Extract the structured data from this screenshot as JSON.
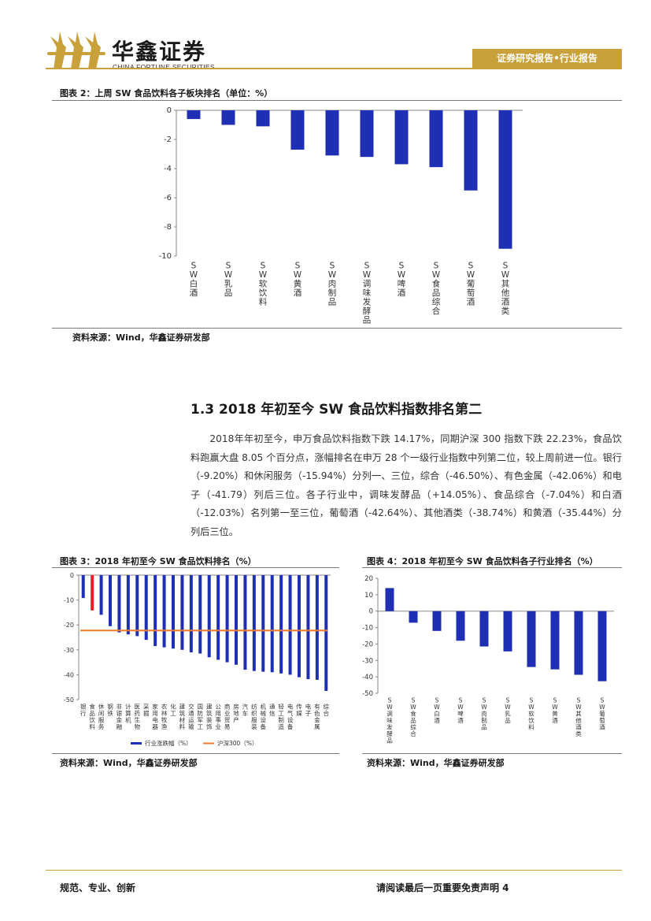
{
  "header": {
    "logo_cn": "华鑫证券",
    "logo_en": "CHINA FORTUNE SECURITIES",
    "report_tag": "证券研究报告•行业报告",
    "brand_color": "#c9a13a"
  },
  "figure2": {
    "title": "图表 2：上周 SW 食品饮料各子板块排名（单位：%）",
    "source": "资料来源：Wind，华鑫证券研发部"
  },
  "section": {
    "heading": "1.3 2018 年初至今 SW 食品饮料指数排名第二",
    "paragraph": "2018年年初至今，申万食品饮料指数下跌 14.17%，同期沪深 300 指数下跌 22.23%，食品饮料跑赢大盘 8.05 个百分点，涨幅排名在申万 28 个一级行业指数中列第二位，较上周前进一位。银行（-9.20%）和休闲服务（-15.94%）分列一、三位，综合（-46.50%）、有色金属（-42.06%）和电子（-41.79）列后三位。各子行业中，调味发酵品（+14.05%）、食品综合（-7.04%）和白酒（-12.03%）名列第一至三位，葡萄酒（-42.64%）、其他酒类（-38.74%）和黄酒（-35.44%）分列后三位。"
  },
  "figure3": {
    "title": "图表 3：2018 年初至今 SW 食品饮料排名（%）",
    "source": "资料来源：Wind，华鑫证券研发部"
  },
  "figure4": {
    "title": "图表 4：2018 年初至今 SW 食品饮料各子行业排名（%）",
    "source": "资料来源：Wind，华鑫证券研发部"
  },
  "footer": {
    "left": "规范、专业、创新",
    "right": "请阅读最后一页重要免责声明 4"
  },
  "chart_data": [
    {
      "id": "figure2",
      "type": "bar",
      "categories": [
        "SW白酒",
        "SW乳品",
        "SW软饮料",
        "SW黄酒",
        "SW肉制品",
        "SW调味发酵品",
        "SW啤酒",
        "SW食品综合",
        "SW葡萄酒",
        "SW其他酒类"
      ],
      "values": [
        -0.6,
        -1.0,
        -1.1,
        -2.7,
        -3.1,
        -3.2,
        -3.7,
        -3.9,
        -5.5,
        -9.5
      ],
      "ylim": [
        -10,
        0
      ],
      "yticks": [
        0,
        -2,
        -4,
        -6,
        -8,
        -10
      ],
      "bar_color": "#1f2fb5"
    },
    {
      "id": "figure3",
      "type": "bar",
      "categories": [
        "银行",
        "食品饮料",
        "休闲服务",
        "钢铁",
        "非银金融",
        "计算机",
        "医药生物",
        "采掘",
        "家用电器",
        "农林牧渔",
        "化工",
        "建筑材料",
        "交通运输",
        "国防军工",
        "建筑装饰",
        "公用事业",
        "商业贸易",
        "房地产",
        "汽车",
        "纺织服装",
        "机械设备",
        "通信",
        "轻工制造",
        "电气设备",
        "传媒",
        "电子",
        "有色金属",
        "综合"
      ],
      "values": [
        -9.2,
        -14.17,
        -15.94,
        -20.5,
        -23.0,
        -23.8,
        -24.5,
        -26.0,
        -28.5,
        -29.0,
        -29.5,
        -30.0,
        -31.0,
        -31.5,
        -33.0,
        -34.0,
        -35.0,
        -36.0,
        -38.0,
        -38.5,
        -38.8,
        -39.0,
        -39.5,
        -40.0,
        -41.0,
        -41.79,
        -42.06,
        -46.5
      ],
      "highlight_index": 1,
      "benchmark": {
        "name": "沪深300（%）",
        "value": -22.23,
        "color": "#f07a2e"
      },
      "series_name": "行业涨跌幅（%）",
      "ylim": [
        -50,
        0
      ],
      "yticks": [
        0,
        -10,
        -20,
        -30,
        -40,
        -50
      ],
      "bar_color": "#1f2fb5",
      "highlight_color": "#e8202a",
      "legend": "bottom"
    },
    {
      "id": "figure4",
      "type": "bar",
      "categories": [
        "SW调味发酵品",
        "SW食品综合",
        "SW白酒",
        "SW啤酒",
        "SW肉制品",
        "SW乳品",
        "SW软饮料",
        "SW黄酒",
        "SW其他酒类",
        "SW葡萄酒"
      ],
      "values": [
        14.05,
        -7.04,
        -12.03,
        -18.0,
        -21.5,
        -24.5,
        -34.0,
        -35.44,
        -38.74,
        -42.64
      ],
      "ylim": [
        -50,
        20
      ],
      "yticks": [
        20,
        10,
        0,
        -10,
        -20,
        -30,
        -40,
        -50
      ],
      "bar_color": "#1f2fb5"
    }
  ]
}
